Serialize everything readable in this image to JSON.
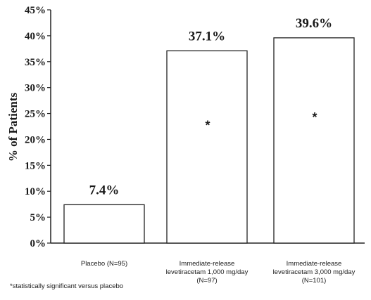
{
  "chart_data": {
    "type": "bar",
    "title": "",
    "xlabel": "",
    "ylabel": "% of Patients",
    "ylim": [
      0,
      45
    ],
    "yticks": [
      "0%",
      "5%",
      "10%",
      "15%",
      "20%",
      "25%",
      "30%",
      "35%",
      "40%",
      "45%"
    ],
    "categories": [
      [
        "Placebo (N=95)"
      ],
      [
        "Immediate-release",
        "levetiracetam 1,000 mg/day",
        "(N=97)"
      ],
      [
        "Immediate-release",
        "levetiracetam 3,000 mg/day",
        "(N=101)"
      ]
    ],
    "values": [
      7.4,
      37.1,
      39.6
    ],
    "data_labels": [
      "7.4%",
      "37.1%",
      "39.6%"
    ],
    "significance_markers": [
      "",
      "*",
      "*"
    ],
    "bar_fill": "#ffffff",
    "bar_stroke": "#222222",
    "grid": false
  },
  "footnote": "*statistically significant versus placebo"
}
